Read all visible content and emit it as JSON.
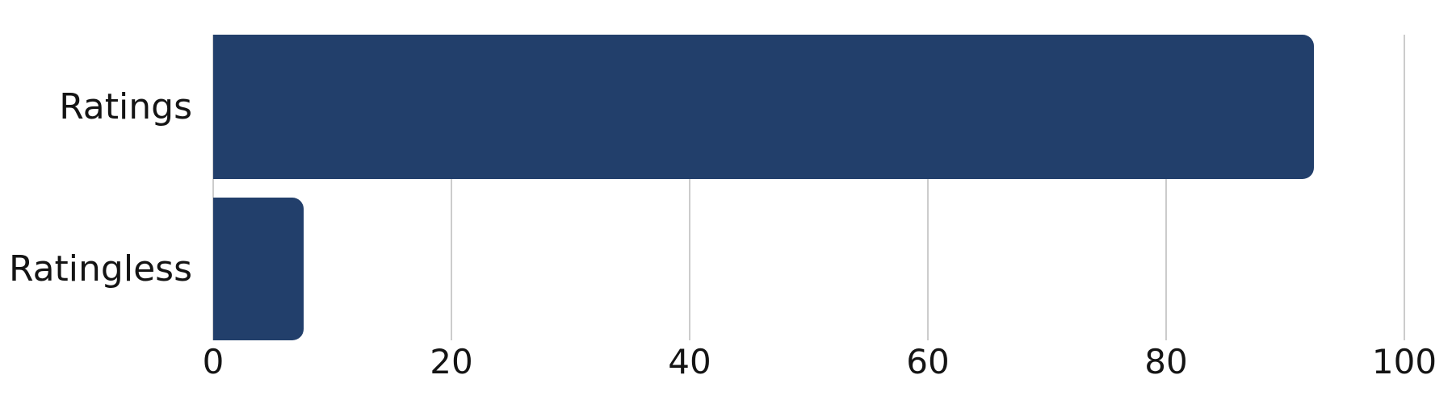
{
  "chart_data": {
    "type": "bar",
    "orientation": "horizontal",
    "title": "",
    "xlabel": "",
    "ylabel": "",
    "categories": [
      "Ratings",
      "Ratingless"
    ],
    "values": [
      92.4,
      7.6
    ],
    "xlim": [
      0,
      100
    ],
    "xticks": [
      0,
      20,
      40,
      60,
      80,
      100
    ],
    "grid": "vertical",
    "legend": "none",
    "bar_color": "#223F6B",
    "gridline_color": "#CCCCCC",
    "text_color": "#141414",
    "background_color": "#FFFFFF"
  }
}
